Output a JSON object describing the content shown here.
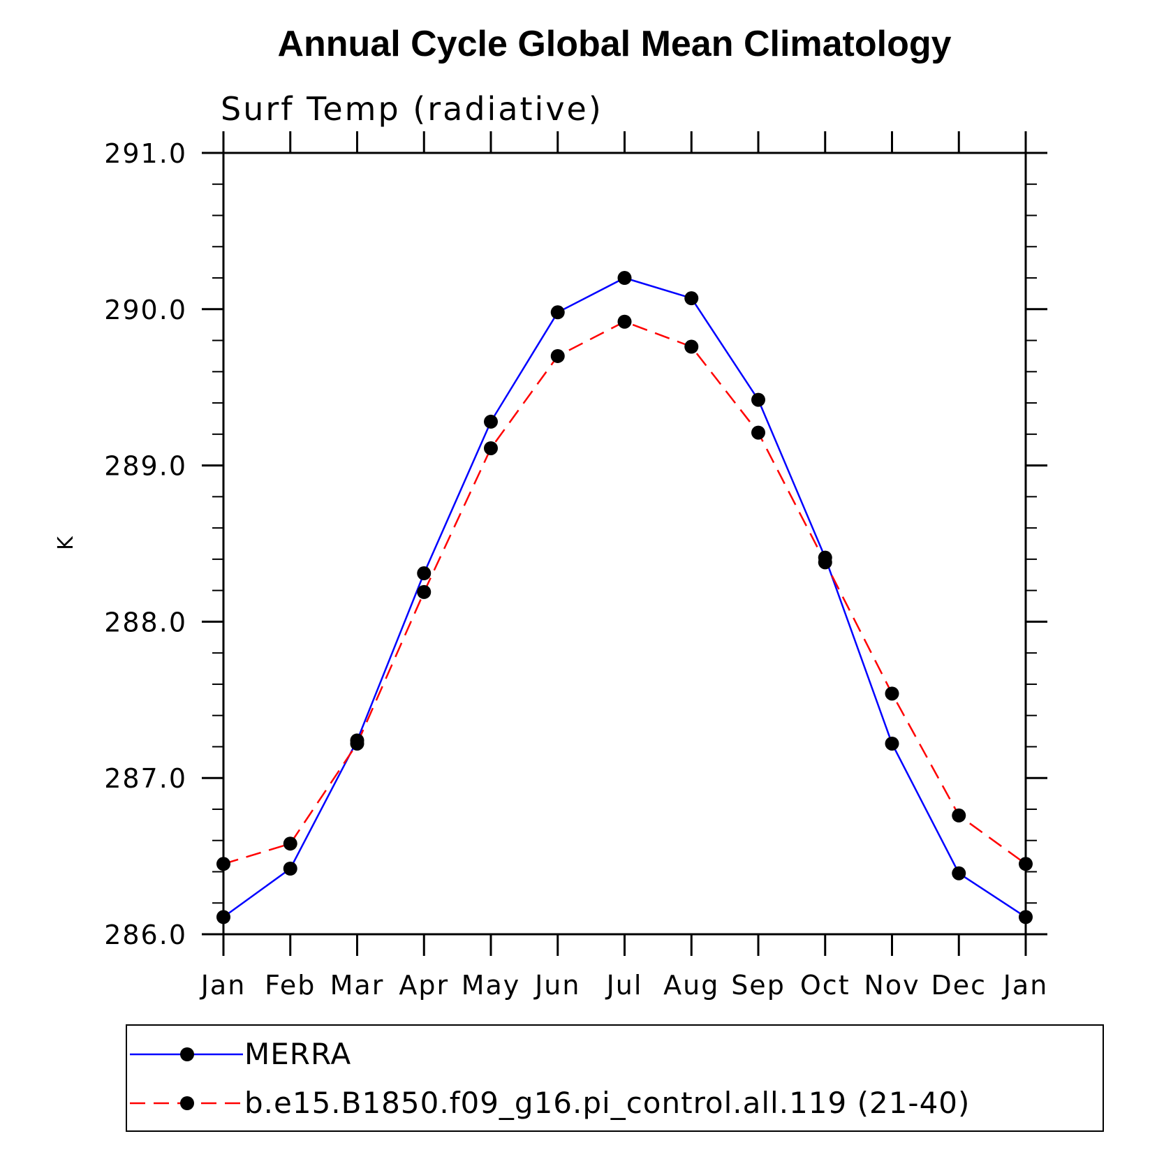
{
  "chart_data": {
    "type": "line",
    "title": "Annual Cycle Global Mean Climatology",
    "subtitle": "Surf Temp (radiative)",
    "xlabel": "",
    "ylabel": "K",
    "categories": [
      "Jan",
      "Feb",
      "Mar",
      "Apr",
      "May",
      "Jun",
      "Jul",
      "Aug",
      "Sep",
      "Oct",
      "Nov",
      "Dec",
      "Jan"
    ],
    "ylim": [
      286.0,
      291.0
    ],
    "yticks": [
      "286.0",
      "287.0",
      "288.0",
      "289.0",
      "290.0",
      "291.0"
    ],
    "legend_position": "bottom",
    "series": [
      {
        "name": "MERRA",
        "color": "#0000ff",
        "dash": "solid",
        "values": [
          286.11,
          286.42,
          287.24,
          288.31,
          289.28,
          289.98,
          290.2,
          290.07,
          289.42,
          288.41,
          287.22,
          286.39,
          286.11
        ]
      },
      {
        "name": "b.e15.B1850.f09_g16.pi_control.all.119 (21-40)",
        "color": "#ff0000",
        "dash": "dashed",
        "values": [
          286.45,
          286.58,
          287.22,
          288.19,
          289.11,
          289.7,
          289.92,
          289.76,
          289.21,
          288.38,
          287.54,
          286.76,
          286.45
        ]
      }
    ]
  }
}
